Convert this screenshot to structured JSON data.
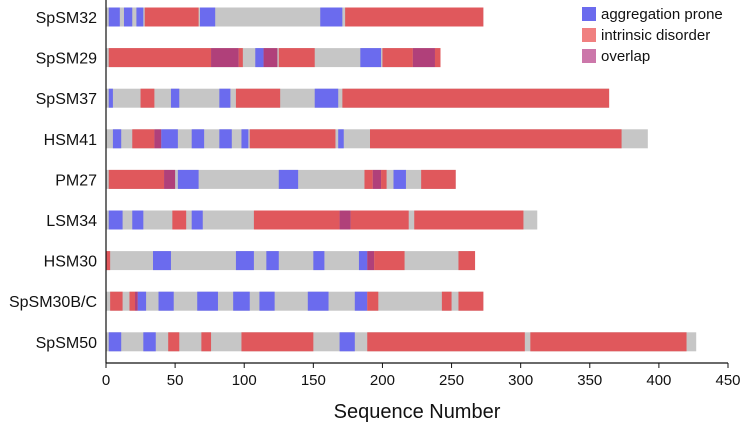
{
  "chart_data": {
    "type": "bar",
    "subtype": "stacked-segment-horizontal",
    "xlabel": "Sequence Number",
    "ylabel": "",
    "title": "",
    "xlim": [
      0,
      450
    ],
    "xticks": [
      0,
      50,
      100,
      150,
      200,
      250,
      300,
      350,
      400,
      450
    ],
    "grid": false,
    "legend_position": "top-right",
    "colors": {
      "background": "#c6c6c6",
      "aggregation prone": "#6b6bee",
      "intrinsic disorder": "#e0585c",
      "overlap": "#b0407a"
    },
    "legend": [
      {
        "name": "aggregation prone",
        "color": "#6b6bee"
      },
      {
        "name": "intrinsic disorder",
        "color": "#f08080"
      },
      {
        "name": "overlap",
        "color": "#cc77aa"
      }
    ],
    "categories": [
      "SpSM32",
      "SpSM29",
      "SpSM37",
      "HSM41",
      "PM27",
      "LSM34",
      "HSM30",
      "SpSM30B/C",
      "SpSM50"
    ],
    "proteins": [
      {
        "name": "SpSM32",
        "length": 273,
        "segments": [
          {
            "type": "aggregation prone",
            "start": 2,
            "end": 10
          },
          {
            "type": "aggregation prone",
            "start": 13,
            "end": 19
          },
          {
            "type": "aggregation prone",
            "start": 22,
            "end": 27
          },
          {
            "type": "intrinsic disorder",
            "start": 28,
            "end": 67
          },
          {
            "type": "aggregation prone",
            "start": 68,
            "end": 79
          },
          {
            "type": "aggregation prone",
            "start": 155,
            "end": 171
          },
          {
            "type": "intrinsic disorder",
            "start": 173,
            "end": 273
          }
        ]
      },
      {
        "name": "SpSM29",
        "length": 242,
        "segments": [
          {
            "type": "intrinsic disorder",
            "start": 2,
            "end": 76
          },
          {
            "type": "overlap",
            "start": 76,
            "end": 96
          },
          {
            "type": "intrinsic disorder",
            "start": 96,
            "end": 99
          },
          {
            "type": "aggregation prone",
            "start": 108,
            "end": 114
          },
          {
            "type": "overlap",
            "start": 114,
            "end": 124
          },
          {
            "type": "intrinsic disorder",
            "start": 125,
            "end": 151
          },
          {
            "type": "aggregation prone",
            "start": 184,
            "end": 199
          },
          {
            "type": "intrinsic disorder",
            "start": 200,
            "end": 222
          },
          {
            "type": "overlap",
            "start": 222,
            "end": 238
          },
          {
            "type": "intrinsic disorder",
            "start": 238,
            "end": 242
          }
        ]
      },
      {
        "name": "SpSM37",
        "length": 364,
        "segments": [
          {
            "type": "aggregation prone",
            "start": 2,
            "end": 5
          },
          {
            "type": "intrinsic disorder",
            "start": 25,
            "end": 35
          },
          {
            "type": "aggregation prone",
            "start": 47,
            "end": 53
          },
          {
            "type": "aggregation prone",
            "start": 82,
            "end": 90
          },
          {
            "type": "intrinsic disorder",
            "start": 94,
            "end": 126
          },
          {
            "type": "aggregation prone",
            "start": 151,
            "end": 168
          },
          {
            "type": "intrinsic disorder",
            "start": 171,
            "end": 364
          }
        ]
      },
      {
        "name": "HSM41",
        "length": 392,
        "segments": [
          {
            "type": "aggregation prone",
            "start": 5,
            "end": 11
          },
          {
            "type": "intrinsic disorder",
            "start": 19,
            "end": 35
          },
          {
            "type": "overlap",
            "start": 35,
            "end": 40
          },
          {
            "type": "aggregation prone",
            "start": 40,
            "end": 52
          },
          {
            "type": "aggregation prone",
            "start": 62,
            "end": 71
          },
          {
            "type": "aggregation prone",
            "start": 82,
            "end": 91
          },
          {
            "type": "aggregation prone",
            "start": 98,
            "end": 103
          },
          {
            "type": "intrinsic disorder",
            "start": 104,
            "end": 166
          },
          {
            "type": "aggregation prone",
            "start": 168,
            "end": 172
          },
          {
            "type": "intrinsic disorder",
            "start": 191,
            "end": 373
          }
        ]
      },
      {
        "name": "PM27",
        "length": 253,
        "segments": [
          {
            "type": "intrinsic disorder",
            "start": 2,
            "end": 42
          },
          {
            "type": "overlap",
            "start": 42,
            "end": 50
          },
          {
            "type": "aggregation prone",
            "start": 52,
            "end": 67
          },
          {
            "type": "aggregation prone",
            "start": 125,
            "end": 139
          },
          {
            "type": "intrinsic disorder",
            "start": 187,
            "end": 193
          },
          {
            "type": "overlap",
            "start": 193,
            "end": 199
          },
          {
            "type": "intrinsic disorder",
            "start": 199,
            "end": 203
          },
          {
            "type": "aggregation prone",
            "start": 208,
            "end": 217
          },
          {
            "type": "intrinsic disorder",
            "start": 228,
            "end": 253
          }
        ]
      },
      {
        "name": "LSM34",
        "length": 312,
        "segments": [
          {
            "type": "aggregation prone",
            "start": 2,
            "end": 12
          },
          {
            "type": "aggregation prone",
            "start": 19,
            "end": 27
          },
          {
            "type": "intrinsic disorder",
            "start": 48,
            "end": 58
          },
          {
            "type": "aggregation prone",
            "start": 62,
            "end": 70
          },
          {
            "type": "intrinsic disorder",
            "start": 107,
            "end": 169
          },
          {
            "type": "overlap",
            "start": 169,
            "end": 177
          },
          {
            "type": "intrinsic disorder",
            "start": 177,
            "end": 219
          },
          {
            "type": "intrinsic disorder",
            "start": 223,
            "end": 302
          }
        ]
      },
      {
        "name": "HSM30",
        "length": 267,
        "segments": [
          {
            "type": "intrinsic disorder",
            "start": 0,
            "end": 3
          },
          {
            "type": "aggregation prone",
            "start": 34,
            "end": 47
          },
          {
            "type": "aggregation prone",
            "start": 94,
            "end": 107
          },
          {
            "type": "aggregation prone",
            "start": 116,
            "end": 125
          },
          {
            "type": "aggregation prone",
            "start": 150,
            "end": 158
          },
          {
            "type": "aggregation prone",
            "start": 183,
            "end": 189
          },
          {
            "type": "overlap",
            "start": 189,
            "end": 194
          },
          {
            "type": "intrinsic disorder",
            "start": 194,
            "end": 216
          },
          {
            "type": "intrinsic disorder",
            "start": 255,
            "end": 267
          }
        ]
      },
      {
        "name": "SpSM30B/C",
        "length": 273,
        "segments": [
          {
            "type": "intrinsic disorder",
            "start": 3,
            "end": 12
          },
          {
            "type": "intrinsic disorder",
            "start": 17,
            "end": 21
          },
          {
            "type": "overlap",
            "start": 21,
            "end": 23
          },
          {
            "type": "aggregation prone",
            "start": 23,
            "end": 29
          },
          {
            "type": "aggregation prone",
            "start": 38,
            "end": 49
          },
          {
            "type": "aggregation prone",
            "start": 66,
            "end": 81
          },
          {
            "type": "aggregation prone",
            "start": 92,
            "end": 104
          },
          {
            "type": "aggregation prone",
            "start": 111,
            "end": 122
          },
          {
            "type": "aggregation prone",
            "start": 146,
            "end": 161
          },
          {
            "type": "aggregation prone",
            "start": 180,
            "end": 189
          },
          {
            "type": "intrinsic disorder",
            "start": 189,
            "end": 197
          },
          {
            "type": "intrinsic disorder",
            "start": 243,
            "end": 250
          },
          {
            "type": "intrinsic disorder",
            "start": 255,
            "end": 273
          }
        ]
      },
      {
        "name": "SpSM50",
        "length": 427,
        "segments": [
          {
            "type": "aggregation prone",
            "start": 2,
            "end": 11
          },
          {
            "type": "aggregation prone",
            "start": 27,
            "end": 36
          },
          {
            "type": "intrinsic disorder",
            "start": 45,
            "end": 53
          },
          {
            "type": "intrinsic disorder",
            "start": 69,
            "end": 76
          },
          {
            "type": "intrinsic disorder",
            "start": 98,
            "end": 150
          },
          {
            "type": "aggregation prone",
            "start": 169,
            "end": 180
          },
          {
            "type": "intrinsic disorder",
            "start": 189,
            "end": 303
          },
          {
            "type": "intrinsic disorder",
            "start": 307,
            "end": 420
          }
        ]
      }
    ]
  }
}
